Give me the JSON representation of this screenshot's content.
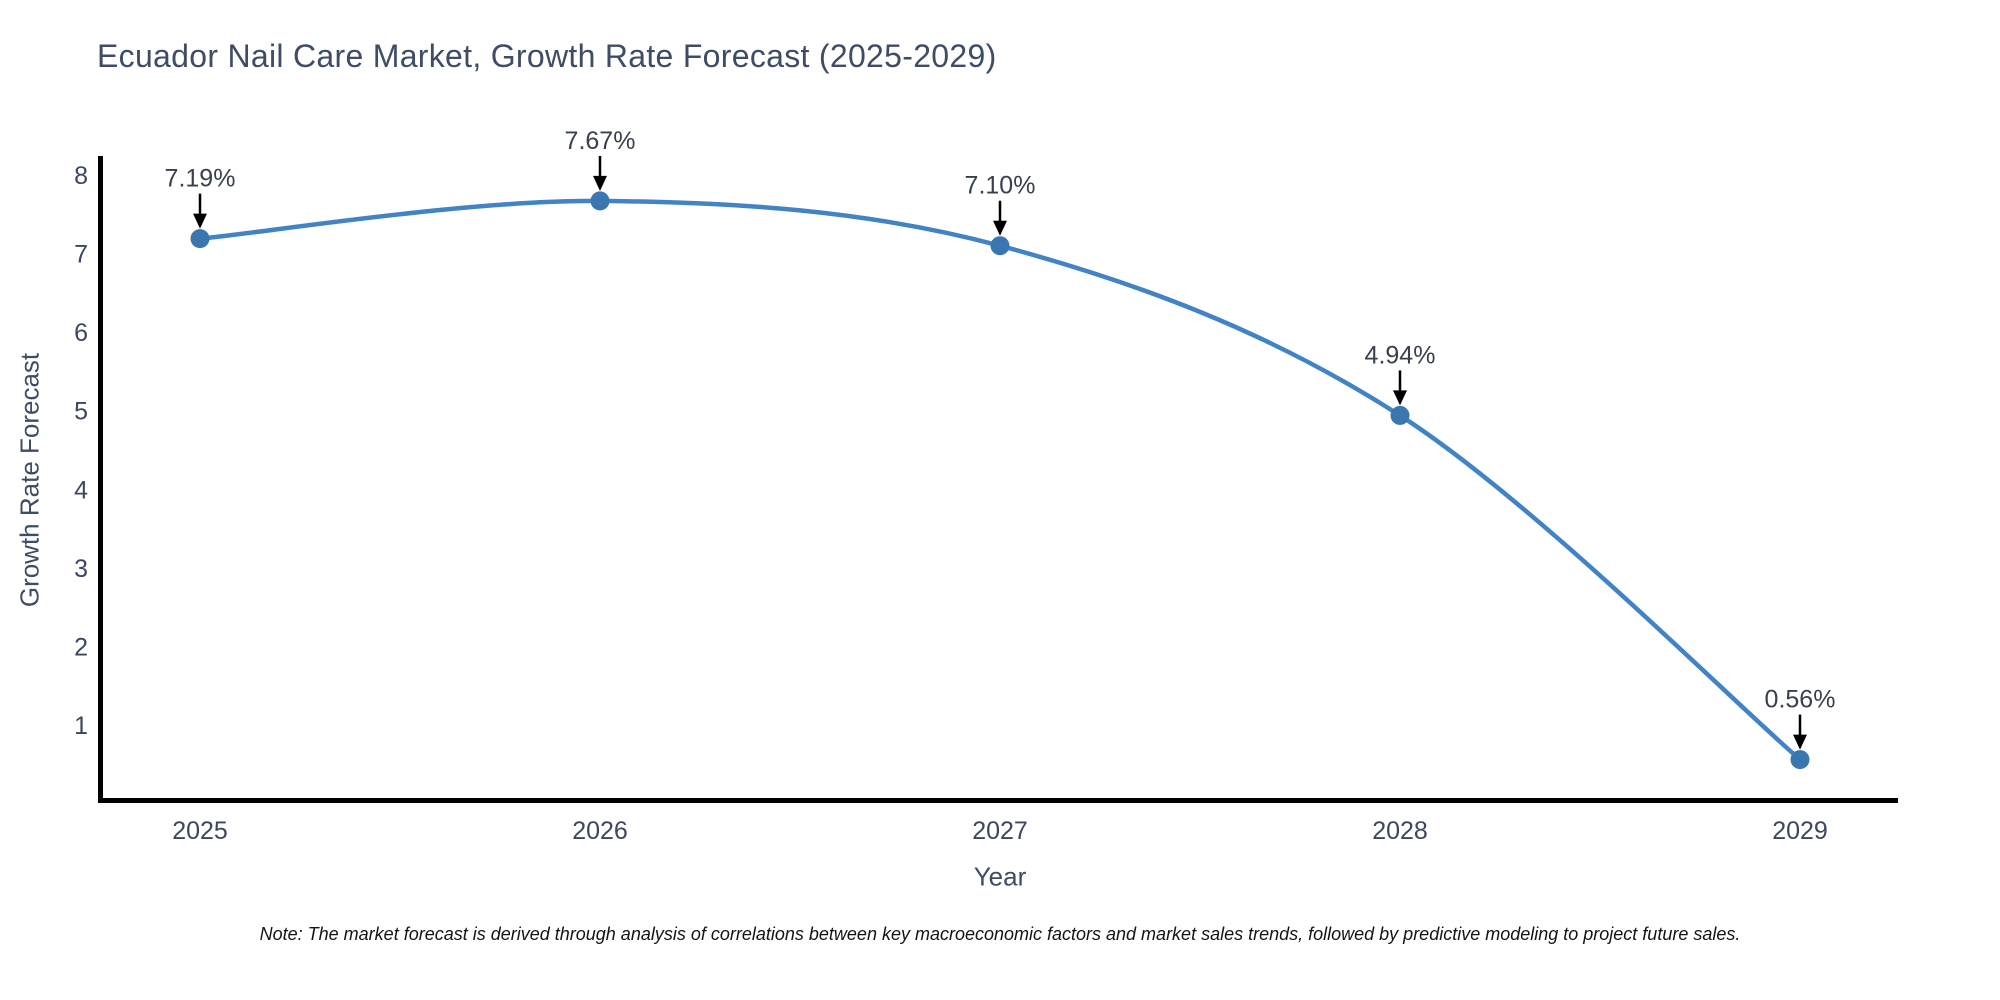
{
  "title": "Ecuador Nail Care Market, Growth Rate Forecast (2025-2029)",
  "note": "Note: The market forecast is derived through analysis of correlations between key macroeconomic factors and market sales trends, followed by predictive modeling to project future sales.",
  "chart_data": {
    "type": "line",
    "title": "Ecuador Nail Care Market, Growth Rate Forecast (2025-2029)",
    "xlabel": "Year",
    "ylabel": "Growth Rate Forecast",
    "x": [
      "2025",
      "2026",
      "2027",
      "2028",
      "2029"
    ],
    "values": [
      7.19,
      7.67,
      7.1,
      4.94,
      0.56
    ],
    "point_labels": [
      "7.19%",
      "7.67%",
      "7.10%",
      "4.94%",
      "0.56%"
    ],
    "y_ticks": [
      1,
      2,
      3,
      4,
      5,
      6,
      7,
      8
    ],
    "ylim": [
      0,
      8.2
    ],
    "line_shape": "spline",
    "grid": false,
    "legend": "none",
    "annotation_style": "black-down-arrow-to-point",
    "colors": {
      "line": "#4183c4",
      "marker": "#3a77b0",
      "arrow": "#000000",
      "axis_line": "#000000",
      "tick_label": "#3b4760",
      "annotation_text": "#39404d",
      "title_text": "#3e4c66",
      "note_text": "#141414",
      "background": "#ffffff"
    }
  }
}
